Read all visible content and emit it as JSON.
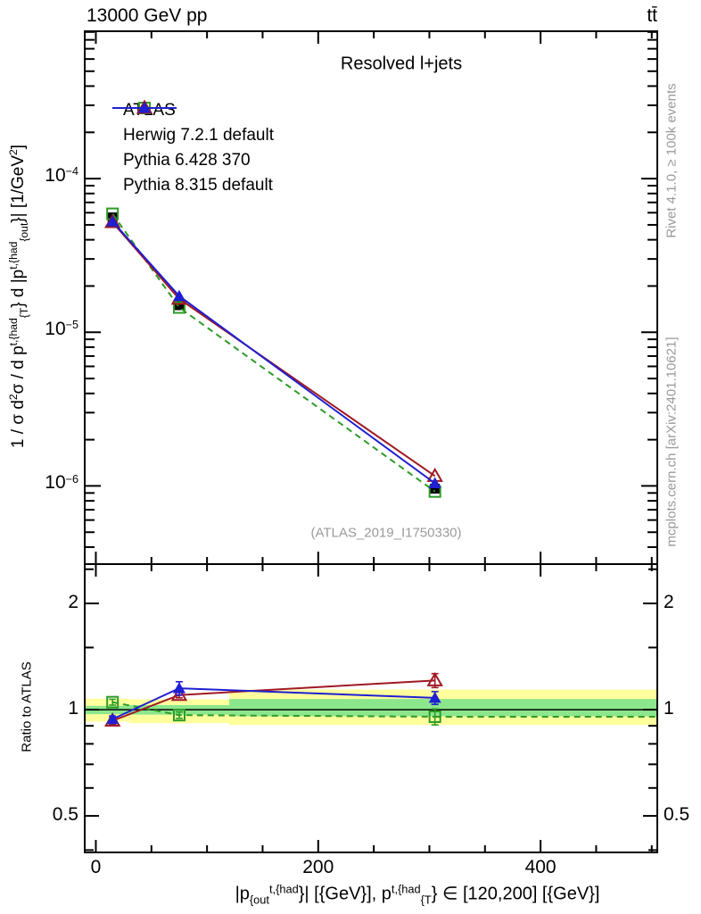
{
  "header": {
    "beam": "13000 GeV pp",
    "process": "tt̄"
  },
  "side_notes": {
    "top": "Rivet 4.1.0, ≥ 100k events",
    "bottom": "mcplots.cern.ch [arXiv:2401.10621]"
  },
  "watermark": "(ATLAS_2019_I1750330)",
  "ratio_axis_label": "Ratio to ATLAS",
  "colors": {
    "atlas": "#000000",
    "herwig": "#2e9b28",
    "pythia6": "#a01923",
    "pythia8": "#1f1fd3",
    "band_yellow": "#ffff9e",
    "band_green": "#8ce68c",
    "frame": "#000000",
    "gray_text": "#9a9a9a"
  },
  "chart_data": {
    "type": "line",
    "title": "Resolved l+jets",
    "x_axis": {
      "range": [
        -10,
        505
      ],
      "major_ticks": [
        0,
        200,
        400
      ],
      "minor_step": 50,
      "label_tokens": [
        {
          "t": "|p"
        },
        {
          "sub": "{out"
        },
        {
          "sup": "t,{had"
        },
        {
          "t": "}| [{GeV}], p"
        },
        {
          "sup": "t,{had"
        },
        {
          "sub": "{T"
        },
        {
          "t": "} ∈ [120,200] [{GeV}]"
        }
      ]
    },
    "y_axis": {
      "scale": "log",
      "range": [
        3.1e-07,
        0.00091
      ],
      "major_ticks": [
        {
          "v": 0.0001,
          "exp": "−4"
        },
        {
          "v": 1e-05,
          "exp": "−5"
        },
        {
          "v": 1e-06,
          "exp": "−6"
        }
      ],
      "label_tokens": [
        {
          "t": "1 / σ d"
        },
        {
          "sup": "2"
        },
        {
          "t": "σ / d p"
        },
        {
          "sup": "t,{had"
        },
        {
          "sub": "{T"
        },
        {
          "t": "} d |p"
        },
        {
          "sup": "t,{had"
        },
        {
          "sub": "{out"
        },
        {
          "t": "}| [1/GeV"
        },
        {
          "sup": "2"
        },
        {
          "t": "]"
        }
      ]
    },
    "ratio_axis": {
      "scale": "log",
      "range": [
        0.394,
        2.585
      ],
      "major_ticks": [
        {
          "v": 0.5,
          "label": "0.5"
        },
        {
          "v": 1,
          "label": "1"
        },
        {
          "v": 2,
          "label": "2"
        }
      ],
      "minor_ticks": [
        0.4,
        0.6,
        0.7,
        0.8,
        0.9,
        1.5,
        2.5
      ]
    },
    "x": [
      15,
      75,
      305
    ],
    "series": [
      {
        "name": "ATLAS",
        "color": "#000000",
        "marker": "filled-square",
        "line": "none",
        "values": [
          5.6e-05,
          1.5e-05,
          9.6e-07
        ]
      },
      {
        "name": "Herwig 7.2.1 default",
        "color": "#2e9b28",
        "marker": "open-square",
        "line": "dashed",
        "values": [
          5.9e-05,
          1.45e-05,
          9.2e-07
        ],
        "ratio": [
          1.05,
          0.965,
          0.955
        ],
        "ratio_err": [
          0.02,
          0.02,
          0.05
        ],
        "ratio_extend_right": true
      },
      {
        "name": "Pythia 6.428 370",
        "color": "#a01923",
        "marker": "open-triangle",
        "line": "solid",
        "values": [
          5.2e-05,
          1.65e-05,
          1.16e-06
        ],
        "ratio": [
          0.93,
          1.1,
          1.21
        ],
        "ratio_err": [
          0.02,
          0.02,
          0.055
        ],
        "ratio_extend_right": false
      },
      {
        "name": "Pythia 8.315 default",
        "color": "#1f1fd3",
        "marker": "filled-triangle",
        "line": "solid",
        "values": [
          5.26e-05,
          1.72e-05,
          1.04e-06
        ],
        "ratio": [
          0.94,
          1.15,
          1.08
        ],
        "ratio_err": [
          0.02,
          0.05,
          0.045
        ],
        "ratio_extend_right": false
      }
    ],
    "bands": {
      "yellow": {
        "color": "#ffff9e",
        "bins": [
          [
            -10,
            30,
            0.925,
            1.075
          ],
          [
            30,
            120,
            0.915,
            1.07
          ],
          [
            120,
            505,
            0.905,
            1.14
          ]
        ]
      },
      "green": {
        "color": "#8ce68c",
        "bins": [
          [
            -10,
            30,
            0.971,
            1.025
          ],
          [
            30,
            120,
            0.968,
            1.03
          ],
          [
            120,
            505,
            0.958,
            1.072
          ]
        ]
      }
    },
    "legend_position": "top-left-inside"
  }
}
